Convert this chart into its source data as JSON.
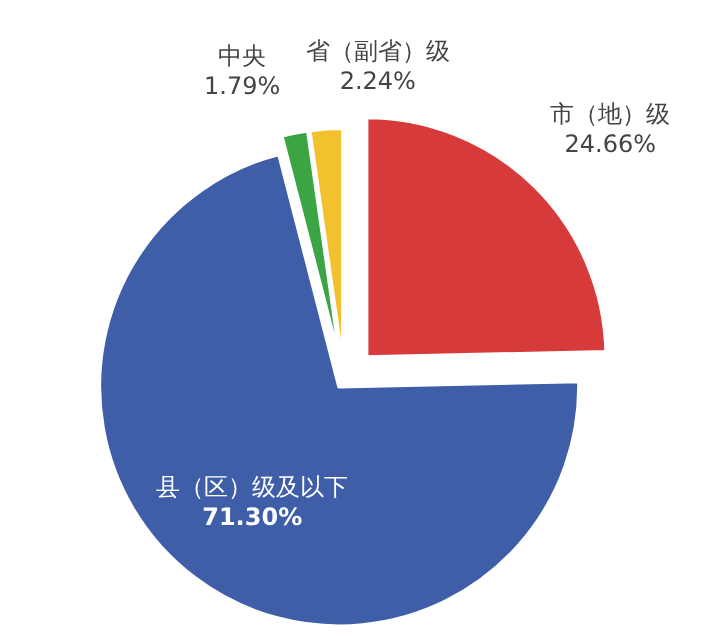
{
  "chart_data": {
    "type": "pie",
    "categories": [
      "中央",
      "省（副省）级",
      "市（地）级",
      "县（区）级及以下"
    ],
    "values": [
      1.79,
      2.24,
      24.66,
      71.3
    ],
    "colors": [
      "#3aa542",
      "#f2c12e",
      "#d63a3a",
      "#3f5ea8"
    ],
    "value_labels": [
      "1.79%",
      "2.24%",
      "24.66%",
      "71.30%"
    ]
  }
}
